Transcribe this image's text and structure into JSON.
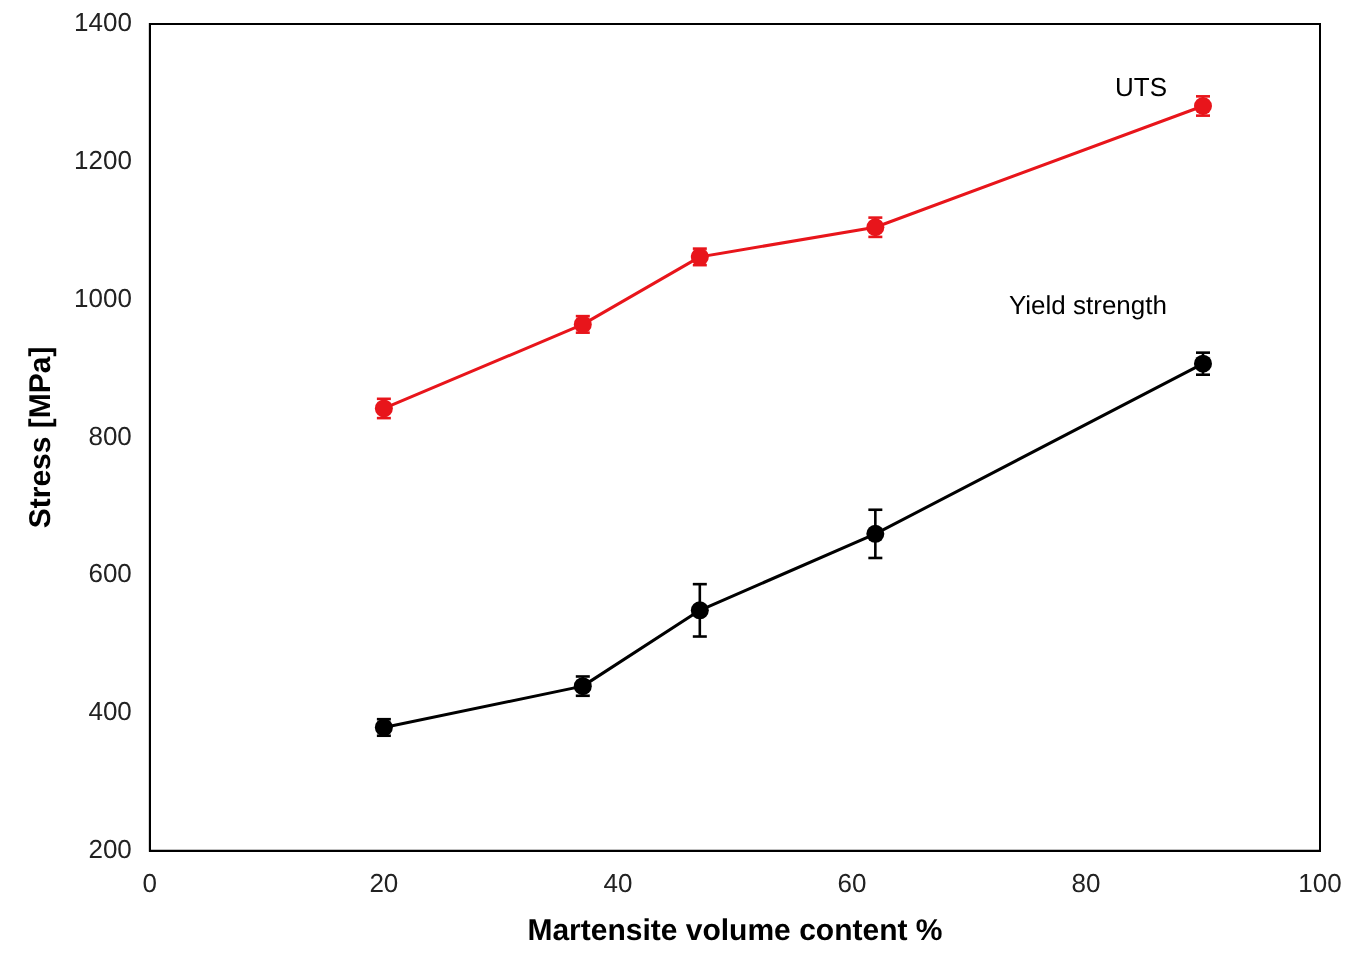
{
  "chart_data": {
    "type": "line",
    "xlabel": "Martensite volume content %",
    "ylabel": "Stress [MPa]",
    "x": [
      20,
      37,
      47,
      62,
      90
    ],
    "series": [
      {
        "name": "UTS",
        "color": "#e8151b",
        "values": [
          842,
          964,
          1062,
          1105,
          1281
        ],
        "errors": [
          14,
          12,
          12,
          14,
          14
        ]
      },
      {
        "name": "Yield strength",
        "color": "#000000",
        "values": [
          379,
          439,
          549,
          660,
          907
        ],
        "errors": [
          12,
          14,
          38,
          35,
          16
        ]
      }
    ],
    "xlim": [
      0,
      100
    ],
    "xticks": [
      0,
      20,
      40,
      60,
      80,
      100
    ],
    "ylim": [
      200,
      1400
    ],
    "yticks": [
      200,
      400,
      600,
      800,
      1000,
      1200,
      1400
    ],
    "grid": false,
    "legend": false,
    "marker": "circle",
    "line_style": "solid"
  }
}
